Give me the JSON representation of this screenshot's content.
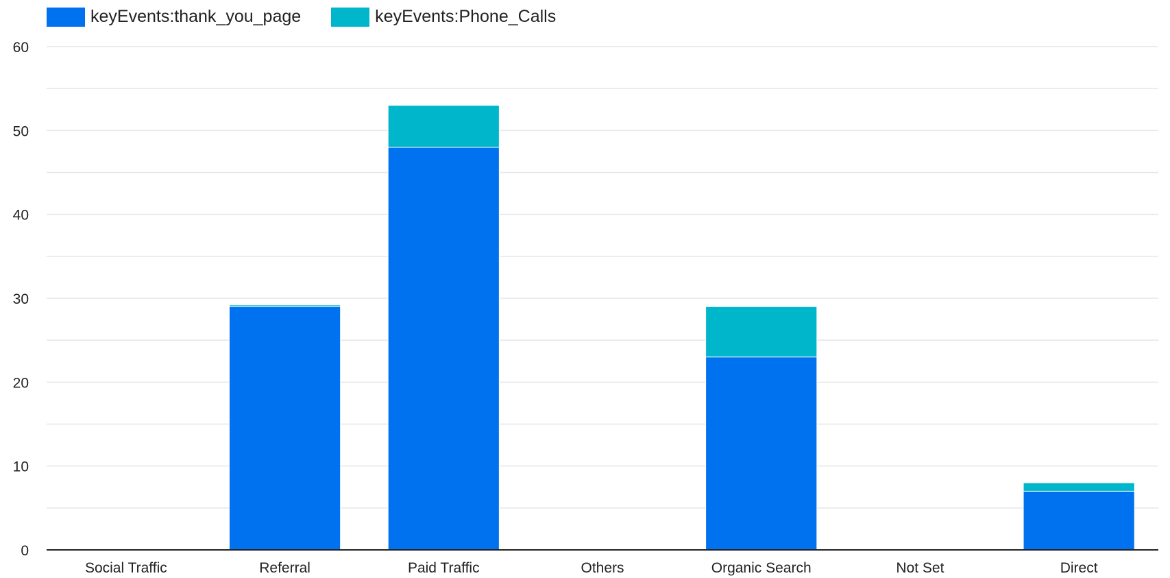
{
  "chart_data": {
    "type": "bar",
    "stacked": true,
    "categories": [
      "Social Traffic",
      "Referral",
      "Paid Traffic",
      "Others",
      "Organic Search",
      "Not Set",
      "Direct"
    ],
    "series": [
      {
        "name": "keyEvents:thank_you_page",
        "color": "#0072F0",
        "values": [
          0,
          29,
          48,
          0,
          23,
          0,
          7
        ]
      },
      {
        "name": "keyEvents:Phone_Calls",
        "color": "#00B6CB",
        "values": [
          0,
          0.2,
          5,
          0,
          6,
          0,
          1
        ]
      }
    ],
    "title": "",
    "xlabel": "",
    "ylabel": "",
    "ylim": [
      0,
      60
    ],
    "yticks": [
      0,
      10,
      20,
      30,
      40,
      50,
      60
    ],
    "grid": true,
    "legend": "top-left"
  }
}
